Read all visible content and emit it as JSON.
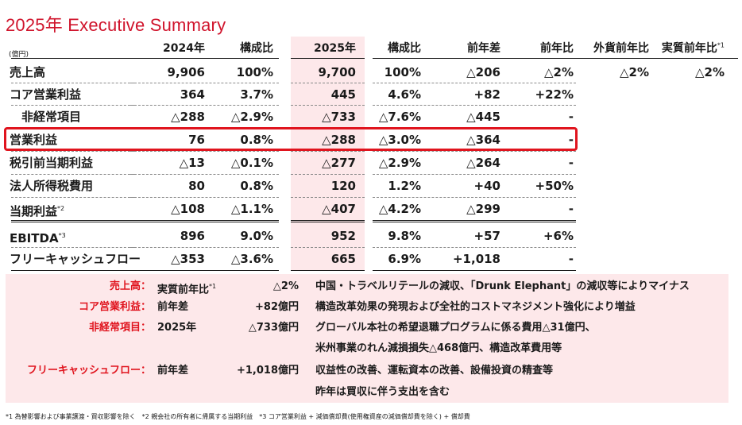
{
  "title": "2025年 Executive Summary",
  "unit": "(億円)",
  "columns": {
    "y2024": "2024年",
    "ratio2024": "構成比",
    "y2025": "2025年",
    "ratio2025": "構成比",
    "diff": "前年差",
    "yoy": "前年比",
    "fx_yoy": "外貨前年比",
    "real_yoy": "実質前年比",
    "real_yoy_sup": "*1"
  },
  "rows": [
    {
      "label": "売上高",
      "sup": "",
      "v2024": "9,906",
      "r2024": "100%",
      "v2025": "9,700",
      "r2025": "100%",
      "diff": "△206",
      "yoy": "△2%",
      "fx": "△2%",
      "real": "△2%"
    },
    {
      "label": "コア営業利益",
      "sup": "",
      "v2024": "364",
      "r2024": "3.7%",
      "v2025": "445",
      "r2025": "4.6%",
      "diff": "+82",
      "yoy": "+22%",
      "fx": "",
      "real": ""
    },
    {
      "label": "　非経常項目",
      "sup": "",
      "v2024": "△288",
      "r2024": "△2.9%",
      "v2025": "△733",
      "r2025": "△7.6%",
      "diff": "△445",
      "yoy": "-",
      "fx": "",
      "real": ""
    },
    {
      "label": "営業利益",
      "sup": "",
      "v2024": "76",
      "r2024": "0.8%",
      "v2025": "△288",
      "r2025": "△3.0%",
      "diff": "△364",
      "yoy": "-",
      "fx": "",
      "real": ""
    },
    {
      "label": "税引前当期利益",
      "sup": "",
      "v2024": "△13",
      "r2024": "△0.1%",
      "v2025": "△277",
      "r2025": "△2.9%",
      "diff": "△264",
      "yoy": "-",
      "fx": "",
      "real": ""
    },
    {
      "label": "法人所得税費用",
      "sup": "",
      "v2024": "80",
      "r2024": "0.8%",
      "v2025": "120",
      "r2025": "1.2%",
      "diff": "+40",
      "yoy": "+50%",
      "fx": "",
      "real": ""
    },
    {
      "label": "当期利益",
      "sup": "*2",
      "v2024": "△108",
      "r2024": "△1.1%",
      "v2025": "△407",
      "r2025": "△4.2%",
      "diff": "△299",
      "yoy": "-",
      "fx": "",
      "real": ""
    },
    {
      "label": "EBITDA",
      "sup": "*3",
      "v2024": "896",
      "r2024": "9.0%",
      "v2025": "952",
      "r2025": "9.8%",
      "diff": "+57",
      "yoy": "+6%",
      "fx": "",
      "real": ""
    },
    {
      "label": "フリーキャッシュフロー",
      "sup": "",
      "v2024": "△353",
      "r2024": "△3.6%",
      "v2025": "665",
      "r2025": "6.9%",
      "diff": "+1,018",
      "yoy": "-",
      "fx": "",
      "real": ""
    }
  ],
  "notes": [
    {
      "key": "売上高：",
      "metric": "実質前年比",
      "metric_sup": "*1",
      "value": "△2%",
      "text": "中国・トラベルリテールの減収、「Drunk Elephant」の減収等によりマイナス"
    },
    {
      "key": "コア営業利益：",
      "metric": "前年差",
      "metric_sup": "",
      "value": "+82億円",
      "text": "構造改革効果の発現および全社的コストマネジメント強化により増益"
    },
    {
      "key": "非経常項目：",
      "metric": "2025年",
      "metric_sup": "",
      "value": "△733億円",
      "text": "グローバル本社の希望退職プログラムに係る費用△31億円、"
    },
    {
      "key": "",
      "metric": "",
      "metric_sup": "",
      "value": "",
      "text": "米州事業のれん減損損失△468億円、構造改革費用等"
    },
    {
      "key": "フリーキャッシュフロー：",
      "metric": "前年差",
      "metric_sup": "",
      "value": "+1,018億円",
      "text": "収益性の改善、運転資本の改善、設備投資の精査等"
    },
    {
      "key": "",
      "metric": "",
      "metric_sup": "",
      "value": "",
      "text": "昨年は買収に伴う支出を含む"
    }
  ],
  "footnote": "*1 為替影響および事業譲渡・買収影響を除く　*2 親会社の所有者に帰属する当期利益　*3 コア営業利益 + 減価償却費(使用権資産の減価償却費を除く) + 償却費",
  "colors": {
    "accent": "#d0142c",
    "highlight_border": "#e0141e",
    "shade": "#fde8ea"
  }
}
